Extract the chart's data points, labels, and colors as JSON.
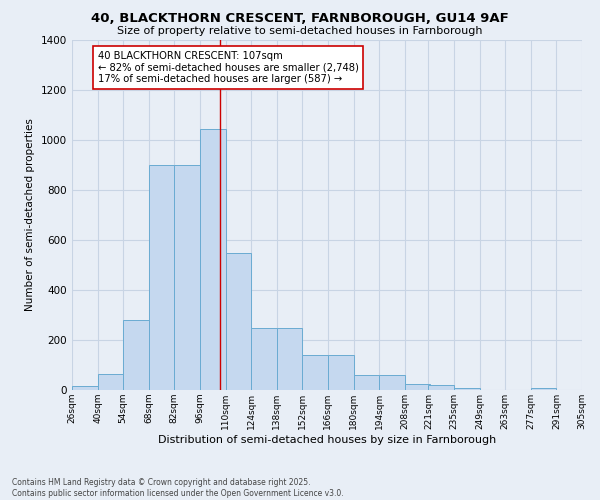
{
  "title1": "40, BLACKTHORN CRESCENT, FARNBOROUGH, GU14 9AF",
  "title2": "Size of property relative to semi-detached houses in Farnborough",
  "xlabel": "Distribution of semi-detached houses by size in Farnborough",
  "ylabel": "Number of semi-detached properties",
  "footer1": "Contains HM Land Registry data © Crown copyright and database right 2025.",
  "footer2": "Contains public sector information licensed under the Open Government Licence v3.0.",
  "annotation_title": "40 BLACKTHORN CRESCENT: 107sqm",
  "annotation_line1": "← 82% of semi-detached houses are smaller (2,748)",
  "annotation_line2": "17% of semi-detached houses are larger (587) →",
  "property_size": 107,
  "bin_edges": [
    26,
    40,
    54,
    68,
    82,
    96,
    110,
    124,
    138,
    152,
    166,
    180,
    194,
    208,
    221,
    235,
    249,
    263,
    277,
    291,
    305
  ],
  "bar_values": [
    18,
    65,
    280,
    900,
    900,
    1045,
    550,
    250,
    250,
    140,
    140,
    60,
    60,
    25,
    20,
    10,
    0,
    0,
    10,
    0,
    0
  ],
  "bar_color": "#c5d8ef",
  "bar_edge_color": "#6aabd2",
  "highlight_color": "#cc0000",
  "grid_color": "#c8d4e4",
  "bg_color": "#e8eef6",
  "ylim": [
    0,
    1400
  ],
  "yticks": [
    0,
    200,
    400,
    600,
    800,
    1000,
    1200,
    1400
  ]
}
